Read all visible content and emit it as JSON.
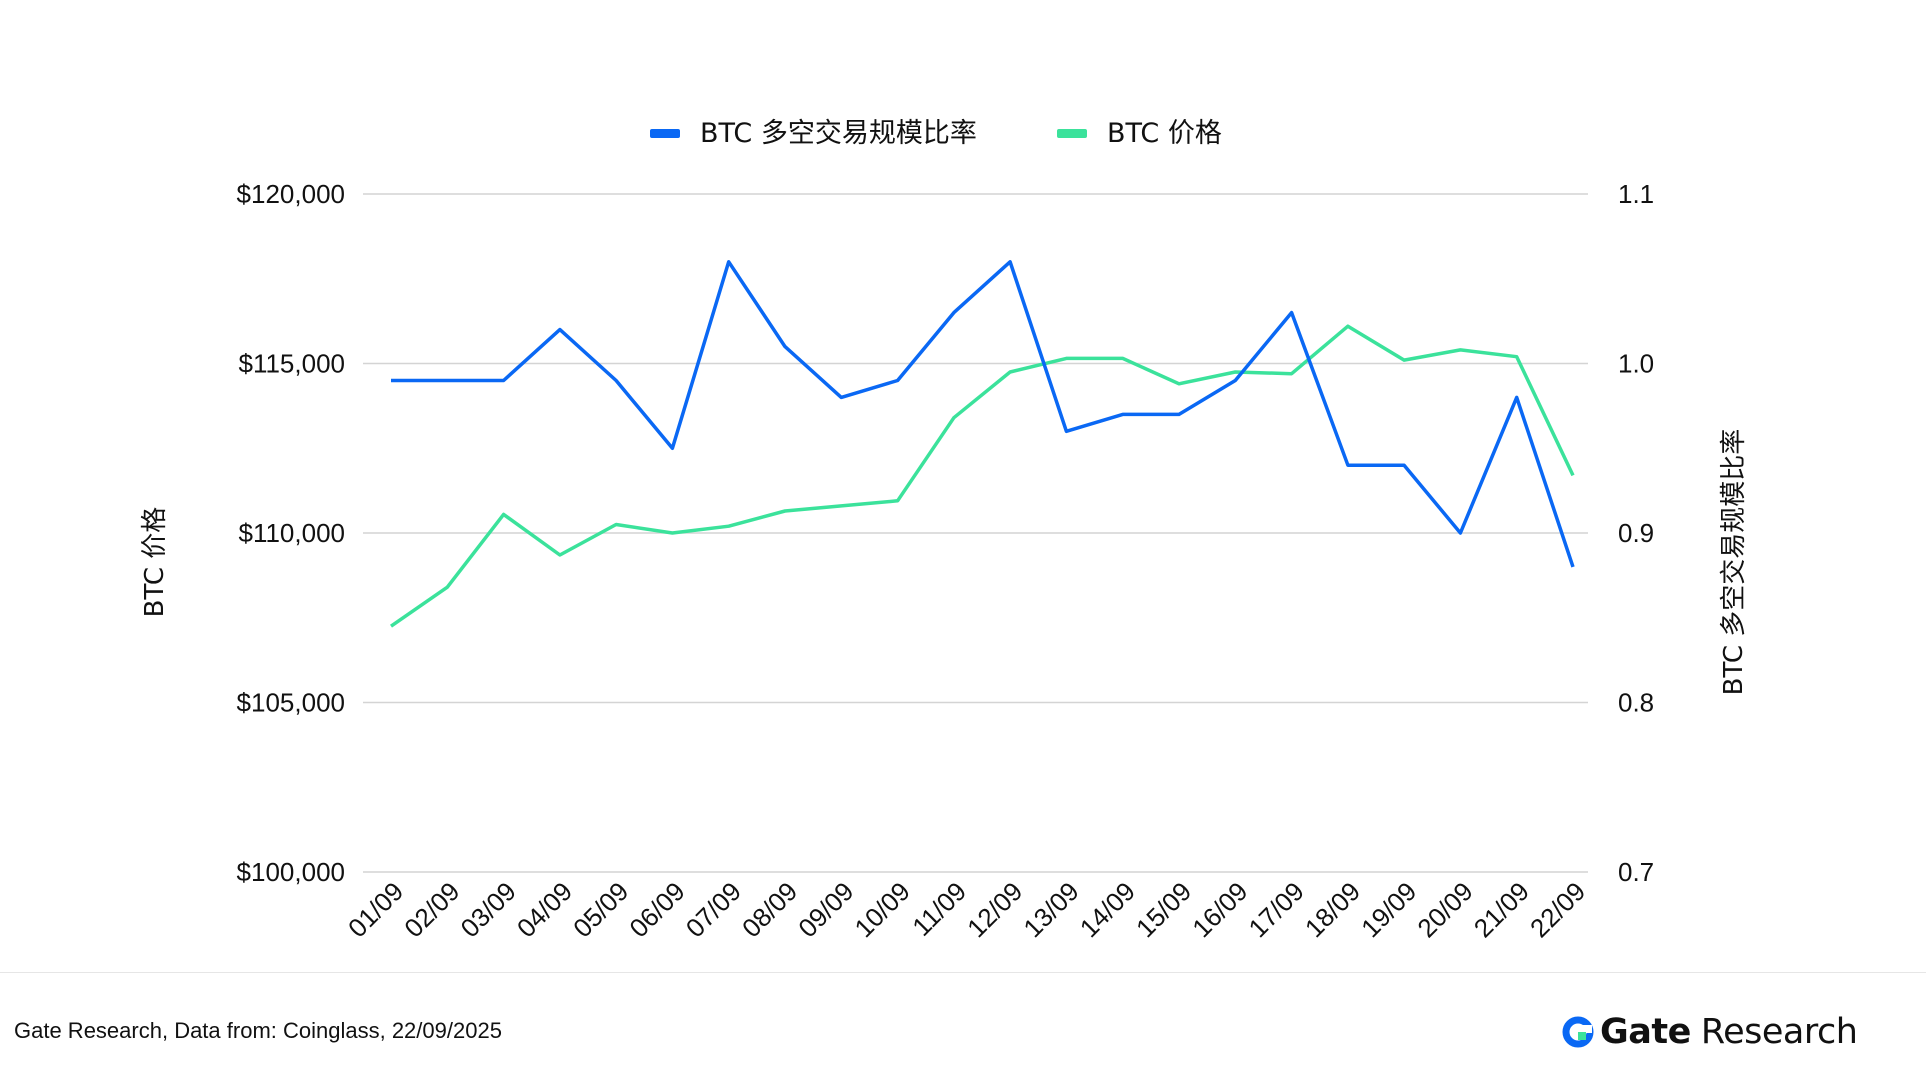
{
  "chart_data": {
    "type": "line",
    "categories": [
      "01/09",
      "02/09",
      "03/09",
      "04/09",
      "05/09",
      "06/09",
      "07/09",
      "08/09",
      "09/09",
      "10/09",
      "11/09",
      "12/09",
      "13/09",
      "14/09",
      "15/09",
      "16/09",
      "17/09",
      "18/09",
      "19/09",
      "20/09",
      "21/09",
      "22/09"
    ],
    "series": [
      {
        "name": "BTC 多空交易规模比率",
        "axis": "right",
        "color": "#0a68f4",
        "values": [
          0.99,
          0.99,
          0.99,
          1.02,
          0.99,
          0.95,
          1.06,
          1.01,
          0.98,
          0.99,
          1.03,
          1.06,
          0.96,
          0.97,
          0.97,
          0.99,
          1.03,
          0.94,
          0.94,
          0.9,
          0.98,
          0.88
        ]
      },
      {
        "name": "BTC 价格",
        "axis": "left",
        "color": "#3be29b",
        "values": [
          107250,
          108400,
          110550,
          109350,
          110250,
          110000,
          110200,
          110650,
          110800,
          110950,
          113400,
          114750,
          115150,
          115150,
          114400,
          114750,
          114700,
          116100,
          115100,
          115400,
          115200,
          111700
        ]
      }
    ],
    "y_left": {
      "label": "BTC 价格",
      "ticks": [
        "$100,000",
        "$105,000",
        "$110,000",
        "$115,000",
        "$120,000"
      ],
      "lim": [
        100000,
        120000
      ]
    },
    "y_right": {
      "label": "BTC 多空交易规模比率",
      "ticks": [
        "0.7",
        "0.8",
        "0.9",
        "1.0",
        "1.1"
      ],
      "lim": [
        0.7,
        1.1
      ]
    },
    "legend_position": "top-center",
    "grid": true
  },
  "footer": {
    "source": "Gate Research, Data from: Coinglass, 22/09/2025",
    "logo_bold": "Gate",
    "logo_rest": "Research"
  },
  "colors": {
    "blue": "#0a68f4",
    "green": "#3be29b",
    "grid": "#d4d4d4"
  }
}
